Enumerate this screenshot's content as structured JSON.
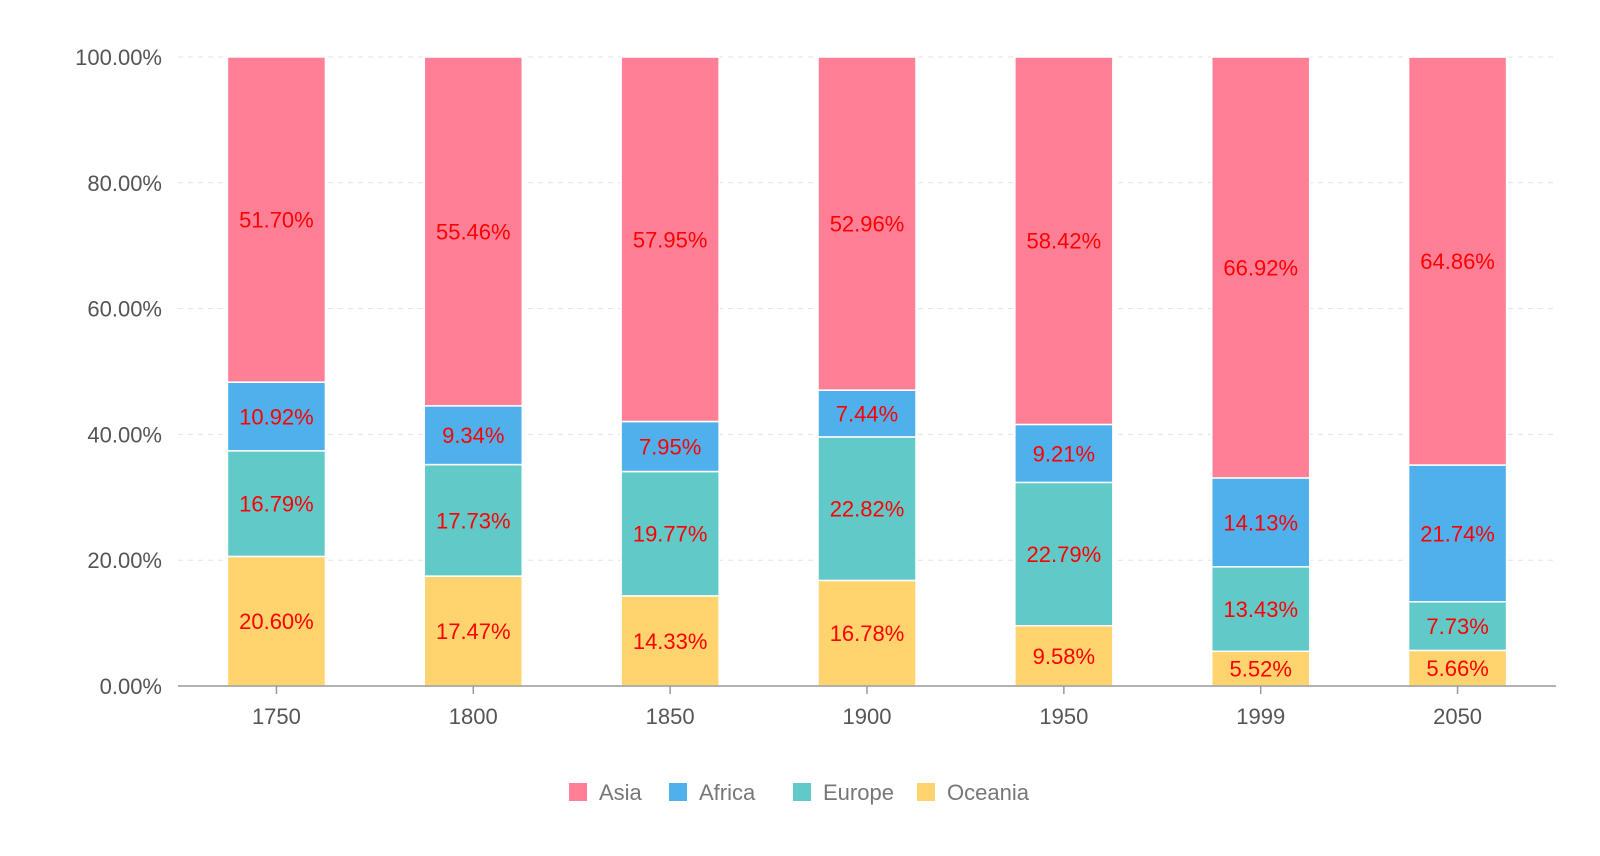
{
  "chart_data": {
    "type": "bar",
    "stacked": true,
    "categories": [
      "1750",
      "1800",
      "1850",
      "1900",
      "1950",
      "1999",
      "2050"
    ],
    "series": [
      {
        "name": "Oceania",
        "color": "#ffd36e",
        "values": [
          20.6,
          17.47,
          14.33,
          16.78,
          9.58,
          5.52,
          5.66
        ],
        "labels": [
          "20.60%",
          "17.47%",
          "14.33%",
          "16.78%",
          "9.58%",
          "5.52%",
          "5.66%"
        ]
      },
      {
        "name": "Europe",
        "color": "#62c9c9",
        "values": [
          16.79,
          17.73,
          19.77,
          22.82,
          22.79,
          13.43,
          7.73
        ],
        "labels": [
          "16.79%",
          "17.73%",
          "19.77%",
          "22.82%",
          "22.79%",
          "13.43%",
          "7.73%"
        ]
      },
      {
        "name": "Africa",
        "color": "#50b0ec",
        "values": [
          10.92,
          9.34,
          7.95,
          7.44,
          9.21,
          14.13,
          21.74
        ],
        "labels": [
          "10.92%",
          "9.34%",
          "7.95%",
          "7.44%",
          "9.21%",
          "14.13%",
          "21.74%"
        ]
      },
      {
        "name": "Asia",
        "color": "#ff8096",
        "values": [
          51.7,
          55.46,
          57.95,
          52.96,
          58.42,
          66.92,
          64.86
        ],
        "labels": [
          "51.70%",
          "55.46%",
          "57.95%",
          "52.96%",
          "58.42%",
          "66.92%",
          "64.86%"
        ]
      }
    ],
    "legend_order": [
      "Asia",
      "Africa",
      "Europe",
      "Oceania"
    ],
    "yticks": [
      0,
      20,
      40,
      60,
      80,
      100
    ],
    "ytick_labels": [
      "0.00%",
      "20.00%",
      "40.00%",
      "60.00%",
      "80.00%",
      "100.00%"
    ],
    "ylim": [
      0,
      100
    ],
    "grid": true,
    "legend_position": "bottom-center",
    "label_color": "#ff0000"
  }
}
